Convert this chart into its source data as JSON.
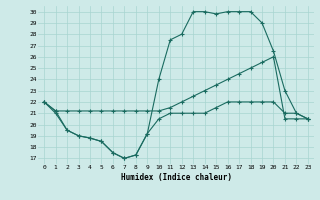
{
  "xlabel": "Humidex (Indice chaleur)",
  "bg_color": "#ceeae8",
  "grid_color": "#a8d5d1",
  "line_color": "#1a6b60",
  "xlim": [
    -0.5,
    23.5
  ],
  "ylim": [
    16.5,
    30.5
  ],
  "xticks": [
    0,
    1,
    2,
    3,
    4,
    5,
    6,
    7,
    8,
    9,
    10,
    11,
    12,
    13,
    14,
    15,
    16,
    17,
    18,
    19,
    20,
    21,
    22,
    23
  ],
  "yticks": [
    17,
    18,
    19,
    20,
    21,
    22,
    23,
    24,
    25,
    26,
    27,
    28,
    29,
    30
  ],
  "line1_x": [
    0,
    1,
    2,
    3,
    4,
    5,
    6,
    7,
    8,
    9,
    10,
    11,
    12,
    13,
    14,
    15,
    16,
    17,
    18,
    19,
    20,
    21,
    22,
    23
  ],
  "line1_y": [
    22,
    21,
    19.5,
    19,
    18.8,
    18.5,
    17.5,
    17,
    17.3,
    19.2,
    20.5,
    21,
    21,
    21,
    21,
    21.5,
    22,
    22,
    22,
    22,
    22,
    21,
    21,
    20.5
  ],
  "line2_x": [
    0,
    1,
    2,
    3,
    4,
    5,
    6,
    7,
    8,
    9,
    10,
    11,
    12,
    13,
    14,
    15,
    16,
    17,
    18,
    19,
    20,
    21,
    22,
    23
  ],
  "line2_y": [
    22,
    21.2,
    21.2,
    21.2,
    21.2,
    21.2,
    21.2,
    21.2,
    21.2,
    21.2,
    21.2,
    21.5,
    22,
    22.5,
    23,
    23.5,
    24,
    24.5,
    25,
    25.5,
    26,
    20.5,
    20.5,
    20.5
  ],
  "line3_x": [
    0,
    1,
    2,
    3,
    4,
    5,
    6,
    7,
    8,
    9,
    10,
    11,
    12,
    13,
    14,
    15,
    16,
    17,
    18,
    19,
    20,
    21,
    22,
    23
  ],
  "line3_y": [
    22,
    21.2,
    19.5,
    19,
    18.8,
    18.5,
    17.5,
    17,
    17.3,
    19.2,
    24,
    27.5,
    28,
    30,
    30,
    29.8,
    30,
    30,
    30,
    29,
    26.5,
    23,
    21,
    20.5
  ]
}
